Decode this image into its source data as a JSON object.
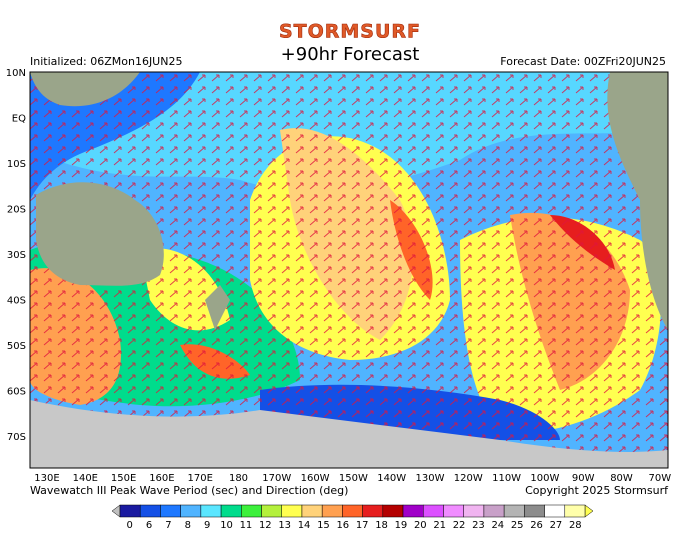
{
  "header": {
    "logo": "STORMSURF",
    "title": "+90hr Forecast",
    "initialized": "Initialized: 06ZMon16JUN25",
    "forecast_date": "Forecast Date: 00ZFri20JUN25"
  },
  "map": {
    "lat_labels": [
      "10N",
      "EQ",
      "10S",
      "20S",
      "30S",
      "40S",
      "50S",
      "60S",
      "70S"
    ],
    "lon_labels": [
      "130E",
      "140E",
      "150E",
      "160E",
      "170E",
      "180",
      "170W",
      "160W",
      "150W",
      "140W",
      "130W",
      "120W",
      "110W",
      "100W",
      "90W",
      "80W",
      "70W"
    ]
  },
  "footer": {
    "caption": "Wavewatch III Peak Wave Period (sec) and Direction (deg)",
    "copyright": "Copyright 2025 Stormsurf"
  },
  "scale": {
    "labels": [
      "0",
      "6",
      "7",
      "8",
      "9",
      "10",
      "11",
      "12",
      "13",
      "14",
      "15",
      "16",
      "17",
      "18",
      "19",
      "20",
      "21",
      "22",
      "23",
      "24",
      "25",
      "26",
      "27",
      "28"
    ],
    "colors": [
      "#1a1aa0",
      "#1450e6",
      "#1e78ff",
      "#50b4ff",
      "#5ae6ff",
      "#00dc8c",
      "#3cf03c",
      "#b4f03c",
      "#ffff50",
      "#ffd27a",
      "#ffa050",
      "#ff6428",
      "#e61e1e",
      "#b40000",
      "#a000c8",
      "#dc50ff",
      "#f08cff",
      "#f0b4f0",
      "#c8a0c8",
      "#b4b4b4",
      "#8c8c8c",
      "#ffffff",
      "#ffffaa"
    ]
  }
}
